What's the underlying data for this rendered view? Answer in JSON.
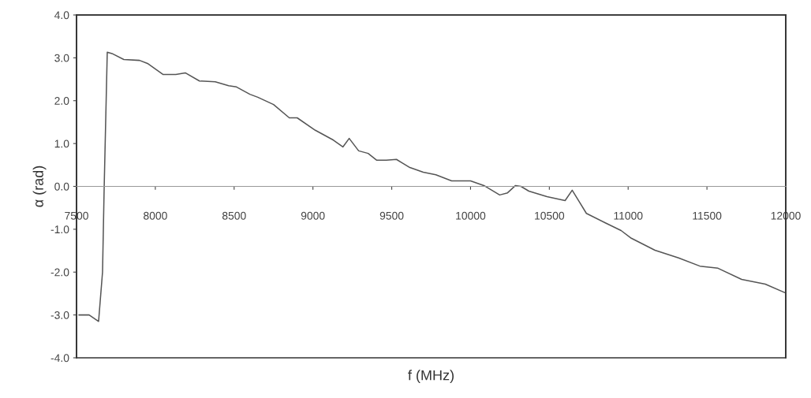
{
  "chart_data": {
    "type": "line",
    "xlabel": "f (MHz)",
    "ylabel": "α (rad)",
    "x": [
      7515,
      7580,
      7640,
      7665,
      7675,
      7695,
      7725,
      7800,
      7900,
      7950,
      8050,
      8130,
      8190,
      8280,
      8380,
      8465,
      8515,
      8600,
      8650,
      8750,
      8850,
      8900,
      9015,
      9130,
      9190,
      9230,
      9290,
      9350,
      9405,
      9465,
      9530,
      9615,
      9700,
      9780,
      9880,
      10000,
      10085,
      10185,
      10235,
      10285,
      10320,
      10370,
      10485,
      10600,
      10645,
      10685,
      10735,
      10855,
      10955,
      11020,
      11170,
      11320,
      11455,
      11570,
      11720,
      11870,
      11995
    ],
    "series": [
      {
        "color": "#555555",
        "values": [
          -3.0,
          -3.0,
          -3.15,
          -2.0,
          -0.1,
          3.13,
          3.1,
          2.96,
          2.94,
          2.87,
          2.61,
          2.61,
          2.65,
          2.46,
          2.44,
          2.35,
          2.32,
          2.15,
          2.08,
          1.91,
          1.6,
          1.6,
          1.31,
          1.08,
          0.92,
          1.12,
          0.83,
          0.77,
          0.61,
          0.61,
          0.63,
          0.44,
          0.33,
          0.27,
          0.13,
          0.13,
          0.02,
          -0.2,
          -0.15,
          0.02,
          0.0,
          -0.11,
          -0.24,
          -0.33,
          -0.09,
          -0.33,
          -0.63,
          -0.85,
          -1.03,
          -1.21,
          -1.49,
          -1.67,
          -1.86,
          -1.91,
          -2.17,
          -2.28,
          -2.48
        ]
      }
    ],
    "xlim": [
      7500,
      12000
    ],
    "xticks": [
      7500,
      8000,
      8500,
      9000,
      9500,
      10000,
      10500,
      11000,
      11500,
      12000
    ],
    "ylim": [
      -4,
      4
    ],
    "yticks": [
      {
        "value": 4,
        "label": "4.0"
      },
      {
        "value": 3,
        "label": "3.0"
      },
      {
        "value": 2,
        "label": "2.0"
      },
      {
        "value": 1,
        "label": "1.0"
      },
      {
        "value": 0,
        "label": "0.0"
      },
      {
        "value": -1,
        "label": "-1.0"
      },
      {
        "value": -2,
        "label": "-2.0"
      },
      {
        "value": -3,
        "label": "-3.0"
      },
      {
        "value": -4,
        "label": "-4.0"
      }
    ],
    "grid": false,
    "legend": false,
    "marker": "none",
    "line_style": "solid"
  }
}
